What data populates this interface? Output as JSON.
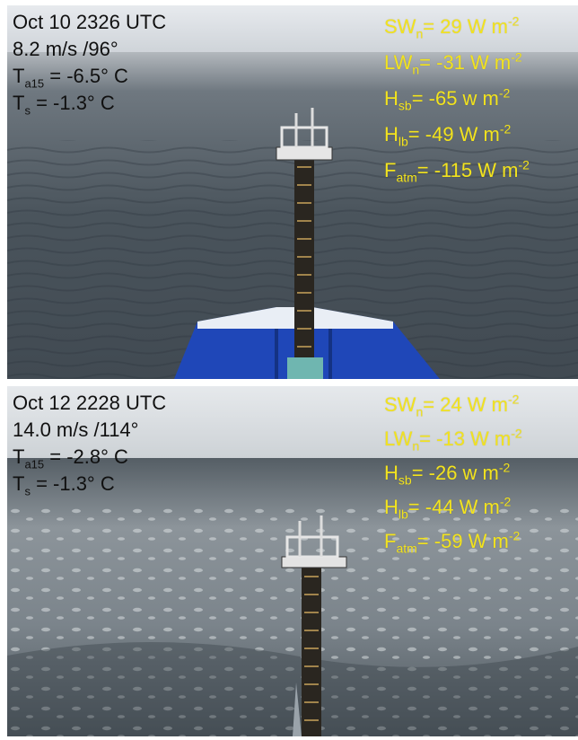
{
  "panels": [
    {
      "timestamp": "Oct 10 2326 UTC",
      "wind": "8.2 m/s /96°",
      "air_temp": {
        "symbol": "T",
        "sub": "a15",
        "value": " = -6.5° C"
      },
      "sea_temp": {
        "symbol": "T",
        "sub": "s",
        "value": " = -1.3° C"
      },
      "fluxes": [
        {
          "symbol": "SW",
          "sub": "n",
          "value": "= 29 W m",
          "sup": "-2"
        },
        {
          "symbol": "LW",
          "sub": "n",
          "value": "= -31 W m",
          "sup": "-2"
        },
        {
          "symbol": "H",
          "sub": "sb",
          "value": "= -65 w m",
          "sup": "-2"
        },
        {
          "symbol": "H",
          "sub": "lb",
          "value": "= -49 W m",
          "sup": "-2"
        },
        {
          "symbol": "F",
          "sub": "atm",
          "value": "= -115 W m",
          "sup": "-2"
        }
      ]
    },
    {
      "timestamp": "Oct 12 2228 UTC",
      "wind": "14.0 m/s /114°",
      "air_temp": {
        "symbol": "T",
        "sub": "a15",
        "value": " = -2.8° C"
      },
      "sea_temp": {
        "symbol": "T",
        "sub": "s",
        "value": " = -1.3° C"
      },
      "fluxes": [
        {
          "symbol": "SW",
          "sub": "n",
          "value": "= 24 W m",
          "sup": "-2"
        },
        {
          "symbol": "LW",
          "sub": "n",
          "value": "= -13 W m",
          "sup": "-2"
        },
        {
          "symbol": "H",
          "sub": "sb",
          "value": "= -26 w m",
          "sup": "-2"
        },
        {
          "symbol": "H",
          "sub": "lb",
          "value": "= -44 W m",
          "sup": "-2"
        },
        {
          "symbol": "F",
          "sub": "atm",
          "value": "= -59 W m",
          "sup": "-2"
        }
      ]
    }
  ],
  "colors": {
    "label_dark": "#101010",
    "label_yellow": "#f2e31f",
    "sky": "#dfe3e8",
    "sea_dark": "#3e4750",
    "sea_light": "#8f989f",
    "hull_blue": "#1f47b8"
  }
}
